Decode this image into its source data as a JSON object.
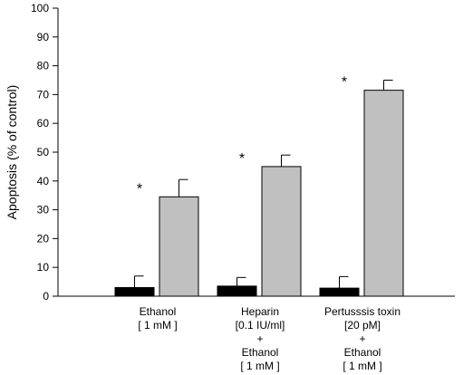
{
  "chart_data": {
    "type": "bar",
    "ylabel": "Apoptosis (% of control)",
    "ylim": [
      0,
      100
    ],
    "yticks": [
      0,
      10,
      20,
      30,
      40,
      50,
      60,
      70,
      80,
      90,
      100
    ],
    "categories": [
      [
        "Ethanol",
        "[ 1 mM ]"
      ],
      [
        "Heparin",
        "[0.1 IU/ml]",
        "+",
        "Ethanol",
        "[ 1 mM ]"
      ],
      [
        "Pertusssis toxin",
        "[20 pM]",
        "+",
        "Ethanol",
        "[ 1 mM ]"
      ]
    ],
    "series": [
      {
        "color": "#000000",
        "values": [
          3,
          3.5,
          2.8
        ],
        "errors": [
          4,
          3,
          4
        ]
      },
      {
        "color": "#c0c0c0",
        "values": [
          34.5,
          45,
          71.5
        ],
        "errors": [
          6,
          4,
          3.5
        ]
      }
    ],
    "annotations": [
      "*",
      "*",
      "*"
    ],
    "grid": false,
    "legend": "none"
  }
}
